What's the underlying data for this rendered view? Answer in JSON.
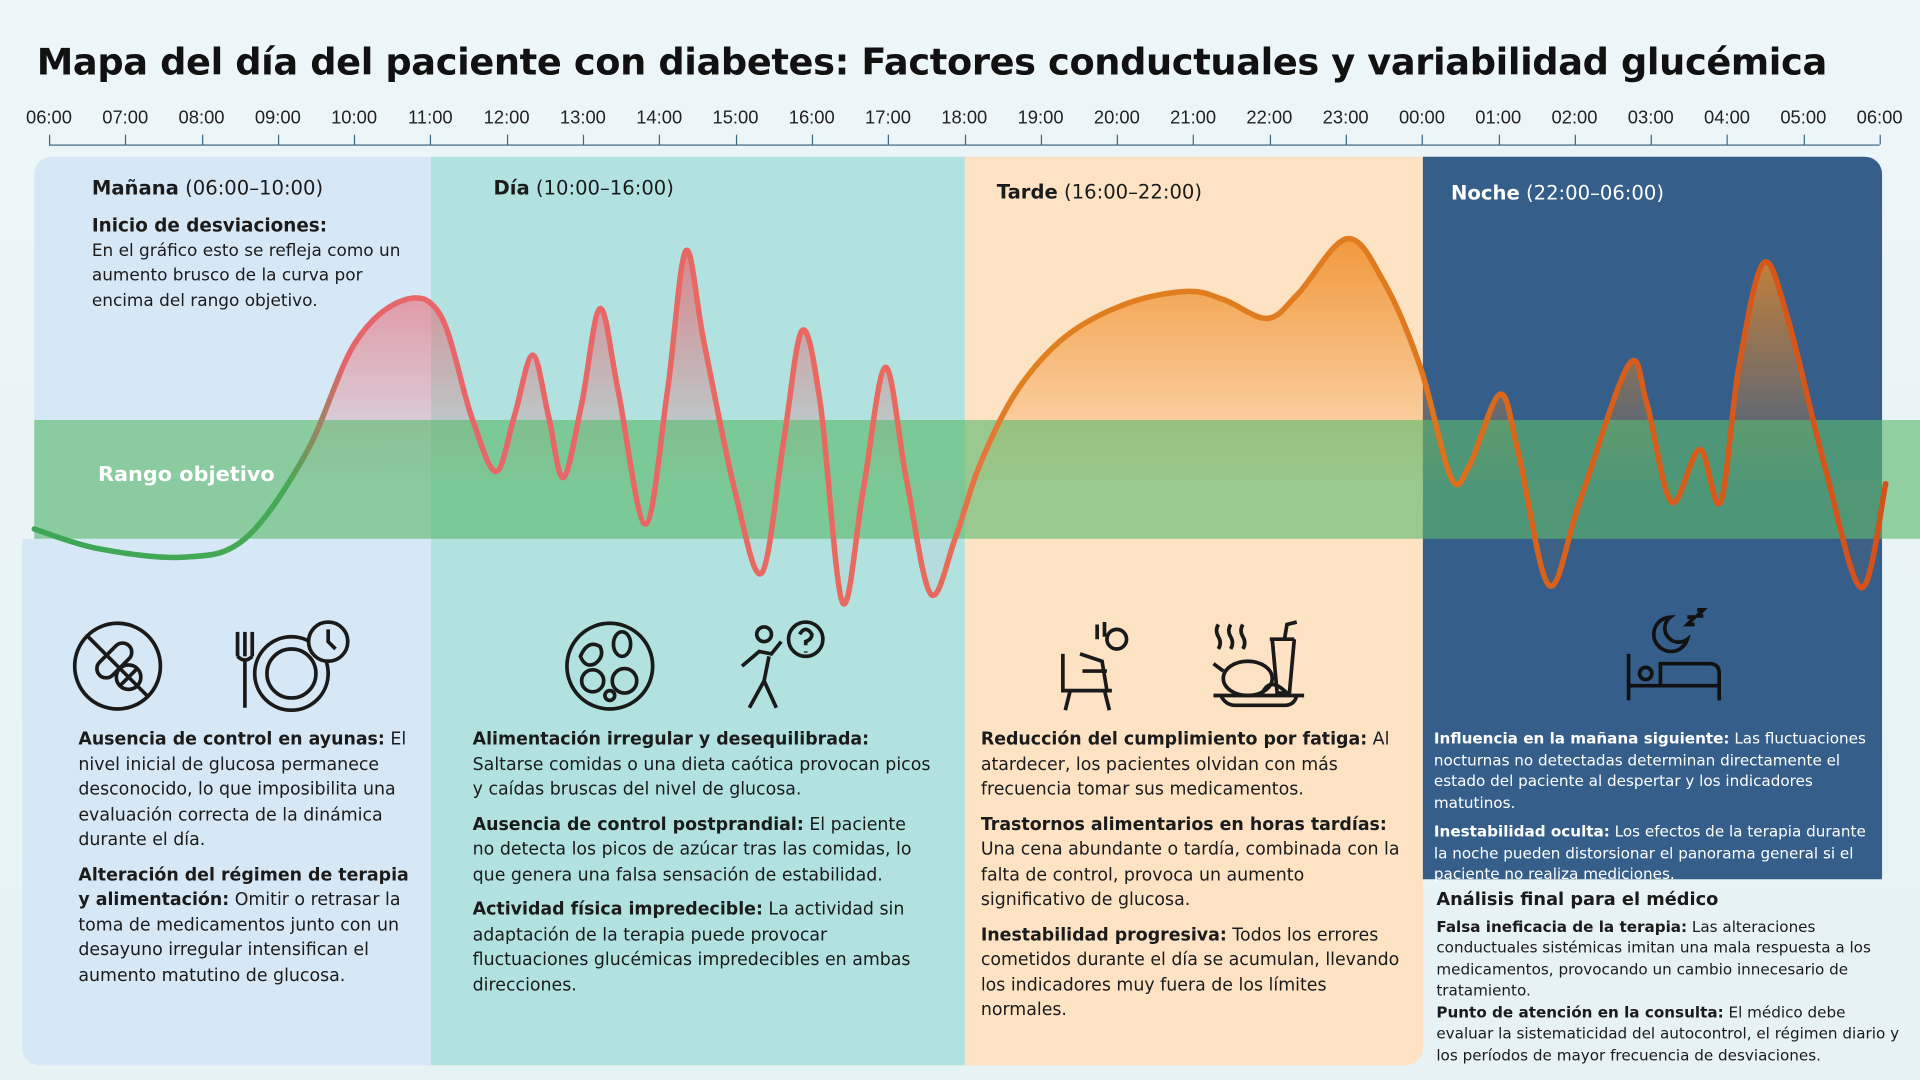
{
  "title": "Mapa del día del paciente con diabetes: Factores conductuales y variabilidad glucémica",
  "timeline": [
    "06:00",
    "07:00",
    "08:00",
    "09:00",
    "10:00",
    "11:00",
    "12:00",
    "13:00",
    "14:00",
    "15:00",
    "16:00",
    "17:00",
    "18:00",
    "19:00",
    "20:00",
    "21:00",
    "22:00",
    "23:00",
    "00:00",
    "01:00",
    "02:00",
    "03:00",
    "04:00",
    "05:00",
    "06:00"
  ],
  "band_label": "Rango objetivo",
  "colors": {
    "manana": "#d7e9f7",
    "dia": "#b0e3e1",
    "tarde": "#fde3c6",
    "noche": "#345f8c",
    "band": "#6cc07a",
    "curve_morning": "#e8606a",
    "curve_evening": "#e07a1f"
  },
  "periods": {
    "manana": {
      "name": "Mañana",
      "range": "(06:00–10:00)",
      "intro_title": "Inicio de desviaciones:",
      "intro_text": "En el gráfico esto se refleja como un aumento brusco de la curva por encima del rango objetivo.",
      "icons": [
        "no-pills-icon",
        "plate-clock-icon"
      ],
      "items": [
        {
          "title": "Ausencia de control en ayunas:",
          "text": "El nivel inicial de glucosa permanece desconocido, lo que imposibilita una evaluación correcta de la dinámica durante el día."
        },
        {
          "title": "Alteración del régimen de terapia y alimentación:",
          "text": "Omitir o retrasar la toma de medicamentos junto con un desayuno irregular intensifican el aumento matutino de glucosa."
        }
      ]
    },
    "dia": {
      "name": "Día",
      "range": "(10:00–16:00)",
      "icons": [
        "mixed-food-plate-icon",
        "person-question-icon"
      ],
      "items": [
        {
          "title": "Alimentación irregular y desequilibrada:",
          "text": "Saltarse comidas o una dieta caótica provocan picos y caídas bruscas del nivel de glucosa."
        },
        {
          "title": "Ausencia de control postprandial:",
          "text": "El paciente no detecta los picos de azúcar tras las comidas, lo que genera una falsa sensación de estabilidad."
        },
        {
          "title": "Actividad física impredecible:",
          "text": "La actividad sin adaptación de la terapia puede provocar fluctuaciones glucémicas impredecibles en ambas direcciones."
        }
      ]
    },
    "tarde": {
      "name": "Tarde",
      "range": "(16:00–22:00)",
      "icons": [
        "tired-person-chair-icon",
        "late-dinner-icon"
      ],
      "items": [
        {
          "title": "Reducción del cumplimiento por fatiga:",
          "text": "Al atardecer, los pacientes olvidan con más frecuencia tomar sus medicamentos."
        },
        {
          "title": "Trastornos alimentarios en horas tardías:",
          "text": "Una cena abundante o tardía, combinada con la falta de control, provoca un aumento significativo de glucosa."
        },
        {
          "title": "Inestabilidad progresiva:",
          "text": "Todos los errores cometidos durante el día se acumulan, llevando los indicadores muy fuera de los límites normales."
        }
      ]
    },
    "noche": {
      "name": "Noche",
      "range": "(22:00–06:00)",
      "icons": [
        "sleeping-bed-icon"
      ],
      "items": [
        {
          "title": "Influencia en la mañana siguiente:",
          "text": "Las fluctuaciones nocturnas no detectadas determinan directamente el estado del paciente al despertar y los indicadores matutinos."
        },
        {
          "title": "Inestabilidad oculta:",
          "text": "Los efectos de la terapia durante la noche pueden distorsionar el panorama general si el paciente no realiza mediciones."
        }
      ]
    }
  },
  "analysis": {
    "heading": "Análisis final para el médico",
    "items": [
      {
        "title": "Falsa ineficacia de la terapia:",
        "text": "Las alteraciones conductuales sistémicas imitan una mala respuesta a los medicamentos, provocando un cambio innecesario de tratamiento."
      },
      {
        "title": "Punto de atención en la consulta:",
        "text": "El médico debe evaluar la sistematicidad del autocontrol, el régimen diario y los períodos de mayor frecuencia de desviaciones."
      }
    ]
  }
}
